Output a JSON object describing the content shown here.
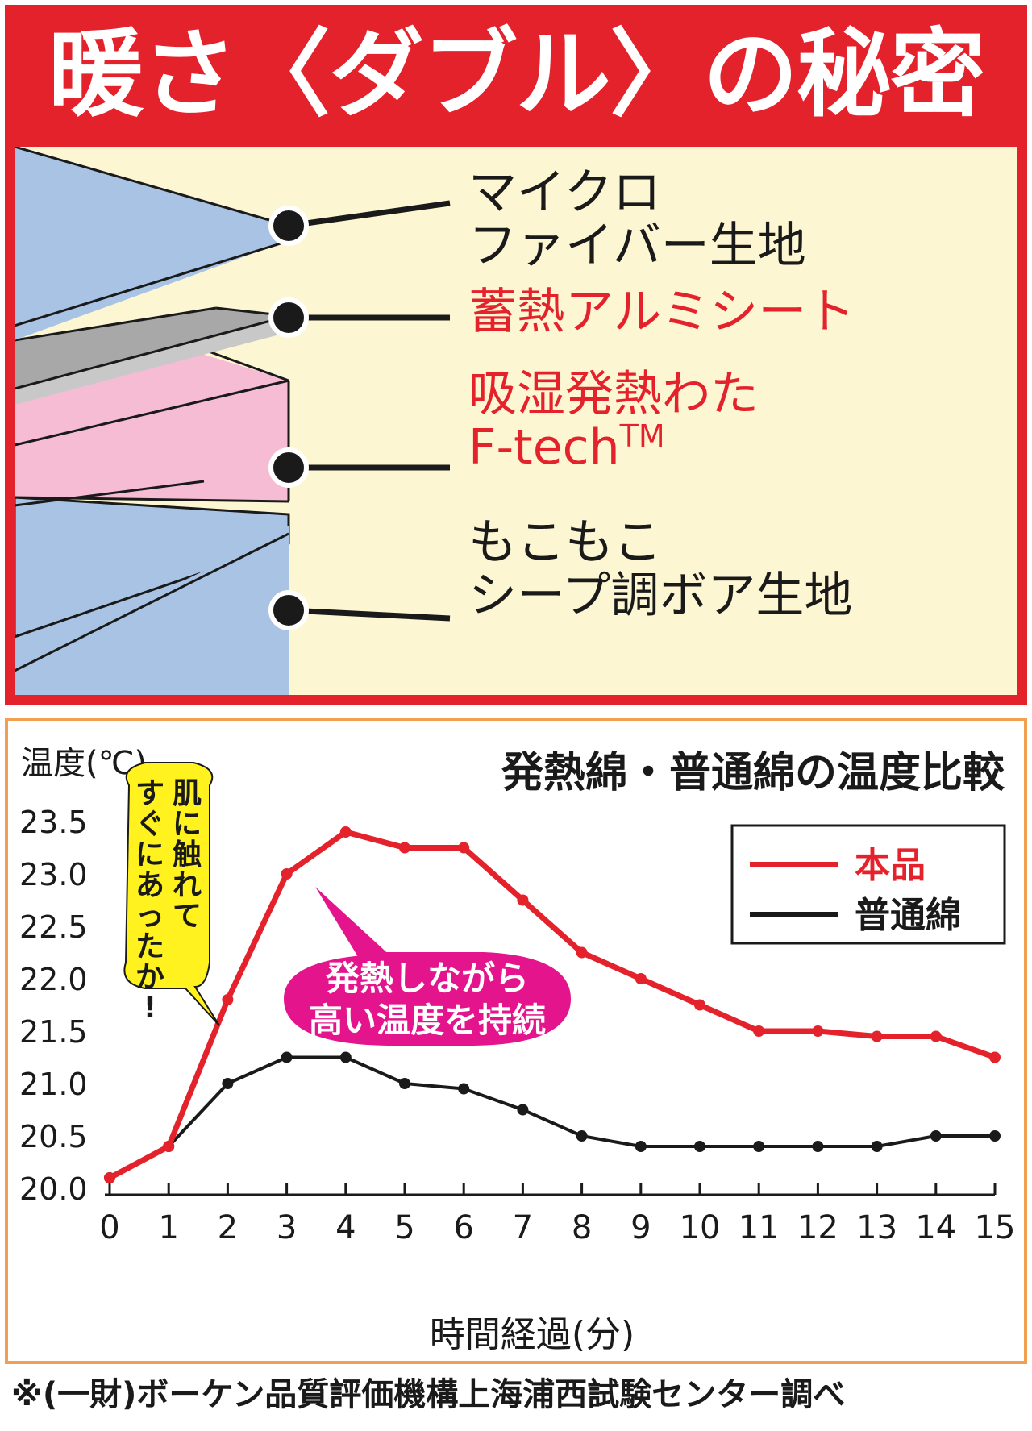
{
  "title": "暖さ〈ダブル〉の秘密",
  "layers": {
    "labels": [
      {
        "lines": [
          "マイクロ",
          "ファイバー生地"
        ],
        "color": "black"
      },
      {
        "lines": [
          "蓄熱アルミシート"
        ],
        "color": "red"
      },
      {
        "lines": [
          "吸湿発熱わた",
          "F-tech"
        ],
        "tm": "TM",
        "color": "red"
      },
      {
        "lines": [
          "もこもこ",
          "シープ調ボア生地"
        ],
        "color": "black"
      }
    ],
    "colors": {
      "blue": "#a9c3e4",
      "gray": "#a8a8a8",
      "pink": "#f5bcd4",
      "cream": "#fdf6d3",
      "red": "#e4222b"
    }
  },
  "chart_data": {
    "type": "line",
    "title": "発熱綿・普通綿の温度比較",
    "ylabel": "温度(℃)",
    "xlabel": "時間経過(分)",
    "x": [
      0,
      1,
      2,
      3,
      4,
      5,
      6,
      7,
      8,
      9,
      10,
      11,
      12,
      13,
      14,
      15
    ],
    "x_ticks": [
      "0",
      "1",
      "2",
      "3",
      "4",
      "5",
      "6",
      "7",
      "8",
      "9",
      "10",
      "11",
      "12",
      "13",
      "14",
      "15"
    ],
    "ylim": [
      20.0,
      23.5
    ],
    "y_ticks": [
      "20.0",
      "20.5",
      "21.0",
      "21.5",
      "22.0",
      "22.5",
      "23.0",
      "23.5"
    ],
    "series": [
      {
        "name": "本品",
        "color": "#e4222b",
        "values": [
          20.1,
          20.4,
          21.8,
          23.0,
          23.4,
          23.25,
          23.25,
          22.75,
          22.25,
          22.0,
          21.75,
          21.5,
          21.5,
          21.45,
          21.45,
          21.25
        ]
      },
      {
        "name": "普通綿",
        "color": "#1a1a1a",
        "values": [
          20.1,
          20.4,
          21.0,
          21.25,
          21.25,
          21.0,
          20.95,
          20.75,
          20.5,
          20.4,
          20.4,
          20.4,
          20.4,
          20.4,
          20.5,
          20.5
        ]
      }
    ],
    "legend_position": "top-right",
    "grid": false,
    "annotations": [
      {
        "text": "肌に触れてすぐにあったか!",
        "color": "#fff21f"
      },
      {
        "lines": [
          "発熱しながら",
          "高い温度を持続"
        ],
        "color": "#e4148c"
      }
    ]
  },
  "footnote": "※(一財)ボーケン品質評価機構上海浦西試験センター調べ"
}
